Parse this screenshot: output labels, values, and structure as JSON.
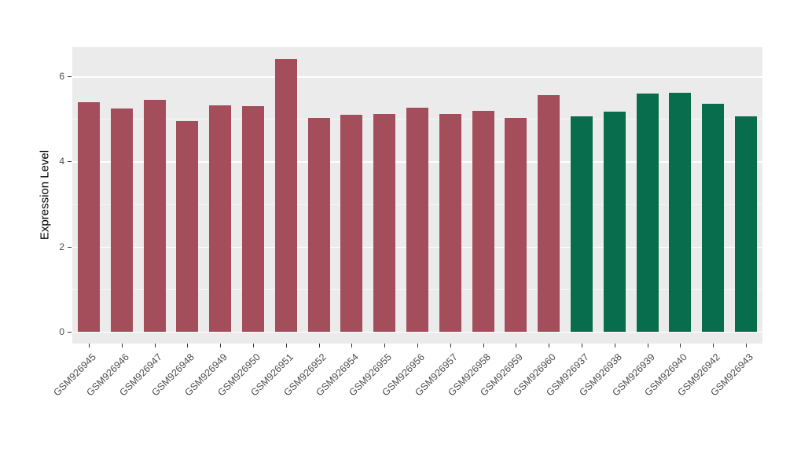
{
  "figure": {
    "panel_bg": "#EBEBEB",
    "grid_major_color": "#FFFFFF",
    "grid_minor_color": "#FFFFFF",
    "axis_text_color": "#4D4D4D",
    "axis_title_color": "#000000"
  },
  "chart_data": {
    "type": "bar",
    "title": "",
    "xlabel": "",
    "ylabel": "Expression Level",
    "ylim": [
      0,
      6.7
    ],
    "yticks": [
      0,
      2,
      4,
      6
    ],
    "yticks_minor": [
      1,
      3,
      5
    ],
    "grid": "on",
    "legend": "none",
    "bar_groups": [
      {
        "name": "group-red",
        "color": "#A44E5B"
      },
      {
        "name": "group-green",
        "color": "#086D4C"
      }
    ],
    "categories": [
      "GSM926945",
      "GSM926946",
      "GSM926947",
      "GSM926948",
      "GSM926949",
      "GSM926950",
      "GSM926951",
      "GSM926952",
      "GSM926954",
      "GSM926955",
      "GSM926956",
      "GSM926957",
      "GSM926958",
      "GSM926959",
      "GSM926960",
      "GSM926937",
      "GSM926938",
      "GSM926939",
      "GSM926940",
      "GSM926942",
      "GSM926943"
    ],
    "values": [
      5.4,
      5.25,
      5.45,
      4.95,
      5.32,
      5.31,
      6.42,
      5.03,
      5.1,
      5.12,
      5.26,
      5.12,
      5.2,
      5.03,
      5.56,
      5.07,
      5.17,
      5.6,
      5.62,
      5.36,
      5.07
    ],
    "groups": [
      0,
      0,
      0,
      0,
      0,
      0,
      0,
      0,
      0,
      0,
      0,
      0,
      0,
      0,
      0,
      1,
      1,
      1,
      1,
      1,
      1
    ]
  }
}
